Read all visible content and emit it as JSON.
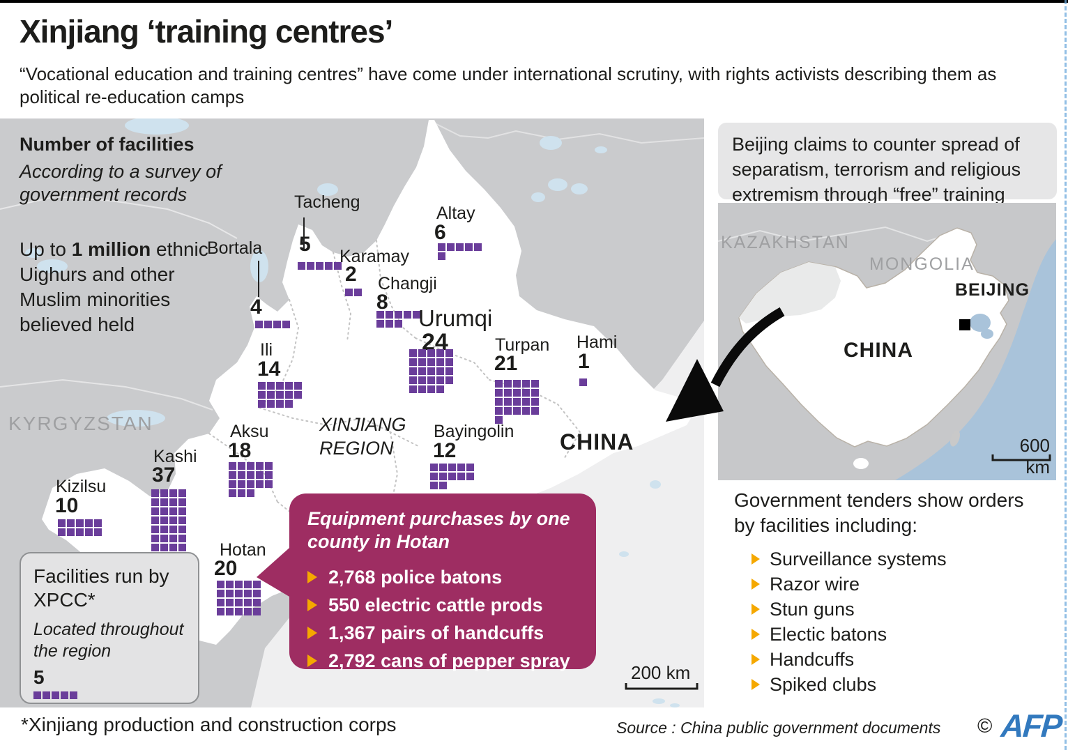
{
  "header": {
    "title": "Xinjiang ‘training centres’",
    "subtitle": "“Vocational education and training centres” have come under international scrutiny, with rights activists describing them as political re-education camps"
  },
  "legend": {
    "heading": "Number of facilities",
    "note": "According to a survey of government records",
    "claim_prefix": "Up to ",
    "claim_bold": "1 million",
    "claim_suffix": " ethnic Uighurs and other Muslim minorities believed held"
  },
  "facilities": [
    {
      "name": "Tacheng",
      "count": 5
    },
    {
      "name": "Altay",
      "count": 6
    },
    {
      "name": "Karamay",
      "count": 2
    },
    {
      "name": "Changji",
      "count": 8
    },
    {
      "name": "Bortala",
      "count": 4
    },
    {
      "name": "Urumqi",
      "count": 24
    },
    {
      "name": "Turpan",
      "count": 21
    },
    {
      "name": "Hami",
      "count": 1
    },
    {
      "name": "Ili",
      "count": 14
    },
    {
      "name": "Aksu",
      "count": 18
    },
    {
      "name": "Kashi",
      "count": 37
    },
    {
      "name": "Kizilsu",
      "count": 10
    },
    {
      "name": "Bayingolin",
      "count": 12
    },
    {
      "name": "Hotan",
      "count": 20
    }
  ],
  "xpcc": {
    "title": "Facilities run by XPCC*",
    "note": "Located throughout the region",
    "count": 5,
    "count_label": "5"
  },
  "equipment": {
    "title": "Equipment purchases by one county in Hotan",
    "items": [
      "2,768 police batons",
      "550 electric cattle prods",
      "1,367 pairs of handcuffs",
      "2,792 cans of pepper spray"
    ]
  },
  "claims_box": {
    "text": "Beijing claims to counter spread of separatism, terrorism and religious extremism through “free” training"
  },
  "main_map_labels": {
    "kyrgyzstan": "KYRGYZSTAN",
    "region": "XINJIANG REGION",
    "china": "CHINA",
    "scale": "200 km"
  },
  "inset": {
    "labels": {
      "kazakhstan": "KAZAKHSTAN",
      "mongolia": "MONGOLIA",
      "beijing": "BEIJING",
      "china": "CHINA"
    },
    "scale": "600 km"
  },
  "tenders": {
    "heading": "Government tenders show orders by facilities including:",
    "items": [
      "Surveillance systems",
      "Razor wire",
      "Stun guns",
      "Electic batons",
      "Handcuffs",
      "Spiked clubs"
    ]
  },
  "footer": {
    "footnote": "*Xinjiang production and construction corps",
    "source": "Source : China public government documents",
    "copyright": "©",
    "logo": "AFP"
  },
  "colors": {
    "purple": "#6A3D9A",
    "maroon": "#9E2D62",
    "yellow": "#F5A800",
    "afp_blue": "#3279BE",
    "country_gray": "#cacbcd",
    "china_light": "#efeff0",
    "lake_blue": "#cfe2ee",
    "sea_blue": "#a9c3da"
  }
}
